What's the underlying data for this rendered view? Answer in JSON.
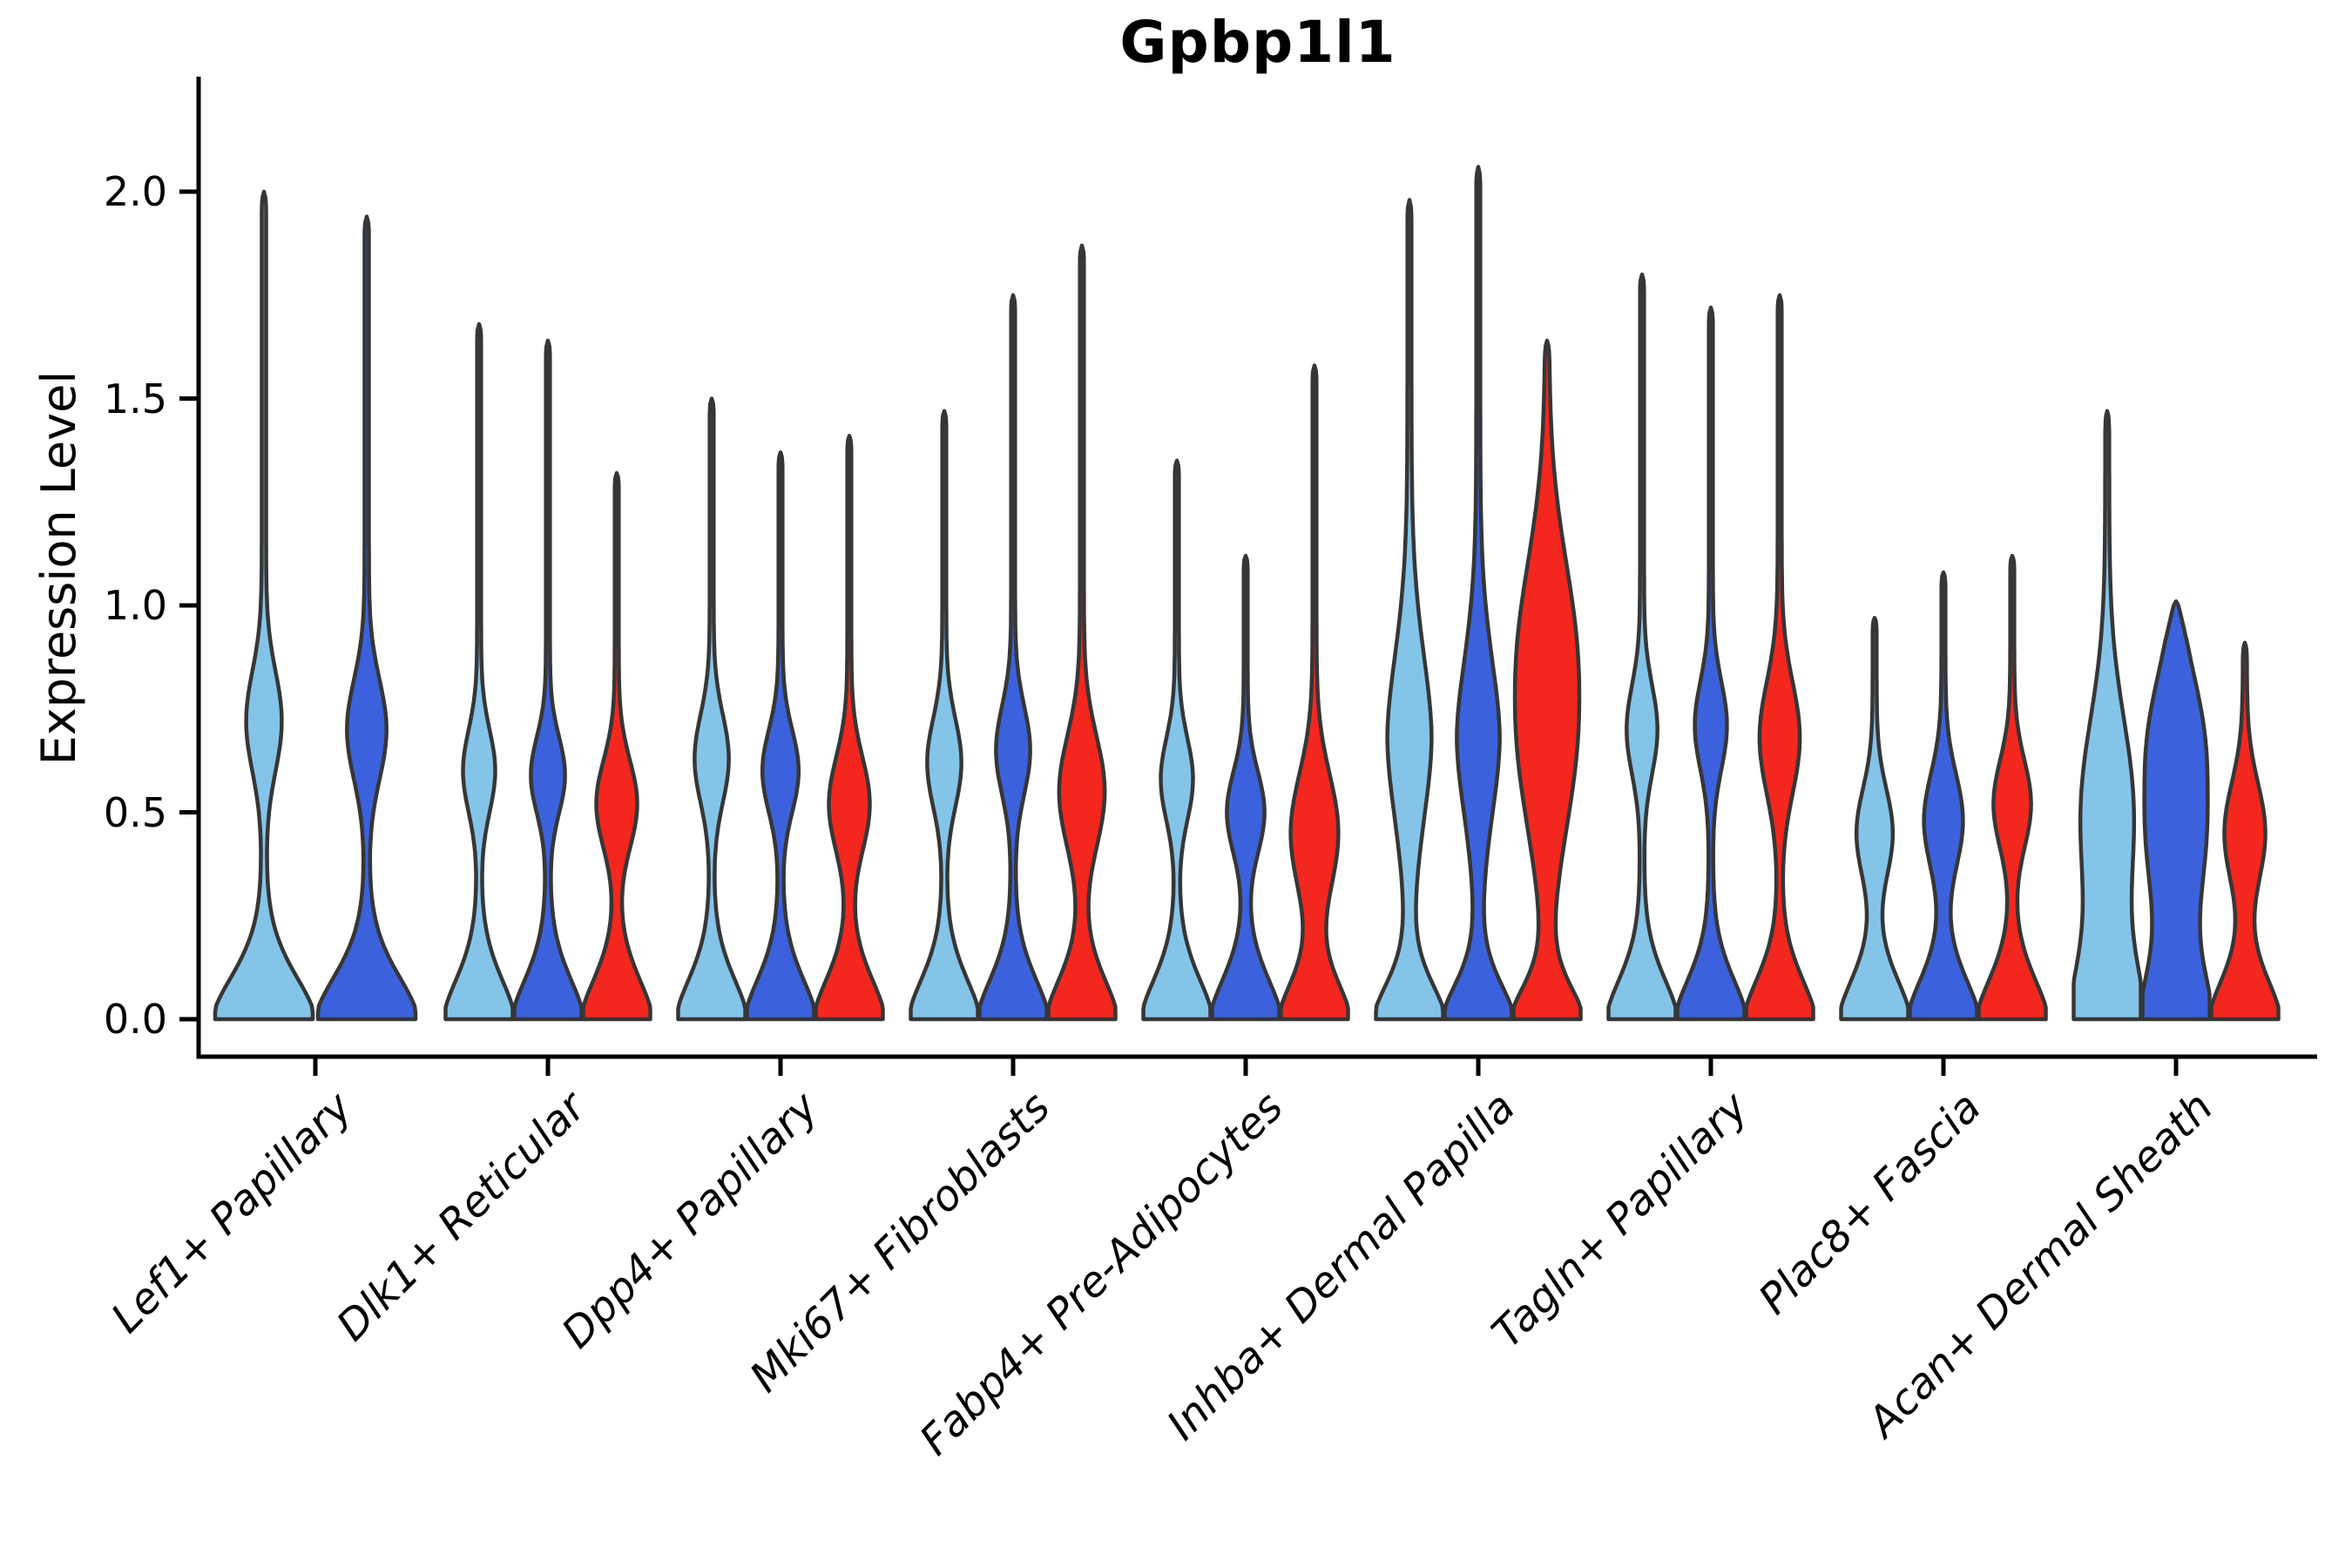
{
  "figure": {
    "background_color": "#ffffff",
    "axis_color": "#000000"
  },
  "chart_data": {
    "type": "violin",
    "title": "Gpbp1l1",
    "xlabel": "",
    "ylabel": "Expression Level",
    "ylim": [
      0.0,
      2.15
    ],
    "ytick_labels": [
      "0.0",
      "0.5",
      "1.0",
      "1.5",
      "2.0"
    ],
    "ytick_values": [
      0.0,
      0.5,
      1.0,
      1.5,
      2.0
    ],
    "grid": false,
    "legend_position": "none",
    "x_labels_rotation_deg": 45,
    "outline_color": "#363636",
    "categories": [
      "Lef1+ Papillary",
      "Dlk1+ Reticular",
      "Dpp4+ Papillary",
      "Mki67+ Fibroblasts",
      "Fabp4+ Pre-Adipocytes",
      "Inhba+ Dermal Papilla",
      "Tagln+ Papillary",
      "Plac8+ Fascia",
      "Acan+ Dermal Sheath"
    ],
    "series": [
      {
        "name": "group-lightblue",
        "color": "#85C4E9",
        "max_expression": [
          2.0,
          1.68,
          1.5,
          1.47,
          1.35,
          1.98,
          1.8,
          0.97,
          1.47
        ]
      },
      {
        "name": "group-darkblue",
        "color": "#3B62DC",
        "max_expression": [
          1.94,
          1.64,
          1.37,
          1.75,
          1.12,
          2.06,
          1.72,
          1.08,
          1.01
        ]
      },
      {
        "name": "group-red",
        "color": "#F3271E",
        "max_expression": [
          null,
          1.32,
          1.41,
          1.87,
          1.58,
          1.64,
          1.75,
          1.12,
          0.91
        ]
      }
    ],
    "violins": [
      {
        "cat": 0,
        "series": 0,
        "tip": 2.0,
        "base_s": 0.16,
        "bulge_c": 0.72,
        "bulge_s": 0.17,
        "bulge_a": 0.32,
        "bulge_p": 2.0,
        "cap": 0.05
      },
      {
        "cat": 0,
        "series": 1,
        "tip": 1.94,
        "base_s": 0.16,
        "bulge_c": 0.7,
        "bulge_s": 0.17,
        "bulge_a": 0.36,
        "bulge_p": 2.0,
        "cap": 0.05
      },
      {
        "cat": 1,
        "series": 0,
        "tip": 1.68,
        "base_s": 0.15,
        "bulge_c": 0.6,
        "bulge_s": 0.14,
        "bulge_a": 0.42,
        "bulge_p": 2.0,
        "cap": 0.04
      },
      {
        "cat": 1,
        "series": 1,
        "tip": 1.64,
        "base_s": 0.15,
        "bulge_c": 0.59,
        "bulge_s": 0.13,
        "bulge_a": 0.45,
        "bulge_p": 2.0,
        "cap": 0.04
      },
      {
        "cat": 1,
        "series": 2,
        "tip": 1.32,
        "base_s": 0.15,
        "bulge_c": 0.52,
        "bulge_s": 0.15,
        "bulge_a": 0.55,
        "bulge_p": 2.0,
        "cap": 0.04
      },
      {
        "cat": 2,
        "series": 0,
        "tip": 1.5,
        "base_s": 0.15,
        "bulge_c": 0.63,
        "bulge_s": 0.15,
        "bulge_a": 0.45,
        "bulge_p": 2.0,
        "cap": 0.04
      },
      {
        "cat": 2,
        "series": 1,
        "tip": 1.37,
        "base_s": 0.15,
        "bulge_c": 0.6,
        "bulge_s": 0.14,
        "bulge_a": 0.48,
        "bulge_p": 2.0,
        "cap": 0.04
      },
      {
        "cat": 2,
        "series": 2,
        "tip": 1.41,
        "base_s": 0.15,
        "bulge_c": 0.52,
        "bulge_s": 0.16,
        "bulge_a": 0.55,
        "bulge_p": 2.0,
        "cap": 0.04
      },
      {
        "cat": 3,
        "series": 0,
        "tip": 1.47,
        "base_s": 0.15,
        "bulge_c": 0.62,
        "bulge_s": 0.15,
        "bulge_a": 0.45,
        "bulge_p": 2.0,
        "cap": 0.04
      },
      {
        "cat": 3,
        "series": 1,
        "tip": 1.75,
        "base_s": 0.15,
        "bulge_c": 0.65,
        "bulge_s": 0.15,
        "bulge_a": 0.45,
        "bulge_p": 2.0,
        "cap": 0.04
      },
      {
        "cat": 3,
        "series": 2,
        "tip": 1.87,
        "base_s": 0.15,
        "bulge_c": 0.55,
        "bulge_s": 0.19,
        "bulge_a": 0.62,
        "bulge_p": 2.0,
        "cap": 0.04
      },
      {
        "cat": 4,
        "series": 0,
        "tip": 1.35,
        "base_s": 0.15,
        "bulge_c": 0.58,
        "bulge_s": 0.14,
        "bulge_a": 0.42,
        "bulge_p": 2.0,
        "cap": 0.04
      },
      {
        "cat": 4,
        "series": 1,
        "tip": 1.12,
        "base_s": 0.15,
        "bulge_c": 0.5,
        "bulge_s": 0.14,
        "bulge_a": 0.5,
        "bulge_p": 2.0,
        "cap": 0.04
      },
      {
        "cat": 4,
        "series": 2,
        "tip": 1.58,
        "base_s": 0.14,
        "bulge_c": 0.45,
        "bulge_s": 0.2,
        "bulge_a": 0.65,
        "bulge_p": 2.0,
        "cap": 0.04
      },
      {
        "cat": 5,
        "series": 0,
        "tip": 1.98,
        "base_s": 0.13,
        "bulge_c": 0.68,
        "bulge_s": 0.3,
        "bulge_a": 0.6,
        "bulge_p": 1.8,
        "cap": 0.05
      },
      {
        "cat": 5,
        "series": 1,
        "tip": 2.06,
        "base_s": 0.13,
        "bulge_c": 0.68,
        "bulge_s": 0.28,
        "bulge_a": 0.58,
        "bulge_p": 1.8,
        "cap": 0.05
      },
      {
        "cat": 5,
        "series": 2,
        "tip": 1.64,
        "base_s": 0.12,
        "bulge_c": 0.78,
        "bulge_s": 0.42,
        "bulge_a": 0.9,
        "bulge_p": 2.2,
        "cap": 0.06
      },
      {
        "cat": 6,
        "series": 0,
        "tip": 1.8,
        "base_s": 0.15,
        "bulge_c": 0.7,
        "bulge_s": 0.15,
        "bulge_a": 0.4,
        "bulge_p": 2.0,
        "cap": 0.04
      },
      {
        "cat": 6,
        "series": 1,
        "tip": 1.72,
        "base_s": 0.15,
        "bulge_c": 0.71,
        "bulge_s": 0.15,
        "bulge_a": 0.42,
        "bulge_p": 2.0,
        "cap": 0.04
      },
      {
        "cat": 6,
        "series": 2,
        "tip": 1.75,
        "base_s": 0.15,
        "bulge_c": 0.68,
        "bulge_s": 0.19,
        "bulge_a": 0.54,
        "bulge_p": 2.0,
        "cap": 0.04
      },
      {
        "cat": 7,
        "series": 0,
        "tip": 0.97,
        "base_s": 0.15,
        "bulge_c": 0.45,
        "bulge_s": 0.15,
        "bulge_a": 0.48,
        "bulge_p": 2.0,
        "cap": 0.04
      },
      {
        "cat": 7,
        "series": 1,
        "tip": 1.08,
        "base_s": 0.15,
        "bulge_c": 0.48,
        "bulge_s": 0.16,
        "bulge_a": 0.52,
        "bulge_p": 2.0,
        "cap": 0.04
      },
      {
        "cat": 7,
        "series": 2,
        "tip": 1.12,
        "base_s": 0.15,
        "bulge_c": 0.52,
        "bulge_s": 0.15,
        "bulge_a": 0.5,
        "bulge_p": 2.0,
        "cap": 0.04
      },
      {
        "cat": 8,
        "series": 0,
        "tip": 1.47,
        "base_s": 0.22,
        "bulge_c": 0.5,
        "bulge_s": 0.32,
        "bulge_a": 0.72,
        "bulge_p": 2.0,
        "cap": 0.06
      },
      {
        "cat": 8,
        "series": 1,
        "tip": 1.01,
        "base_s": 0.2,
        "bulge_c": 0.55,
        "bulge_s": 0.34,
        "bulge_a": 0.88,
        "bulge_p": 2.6,
        "cap": 0.12
      },
      {
        "cat": 8,
        "series": 2,
        "tip": 0.91,
        "base_s": 0.15,
        "bulge_c": 0.45,
        "bulge_s": 0.17,
        "bulge_a": 0.55,
        "bulge_p": 2.0,
        "cap": 0.05
      }
    ]
  }
}
